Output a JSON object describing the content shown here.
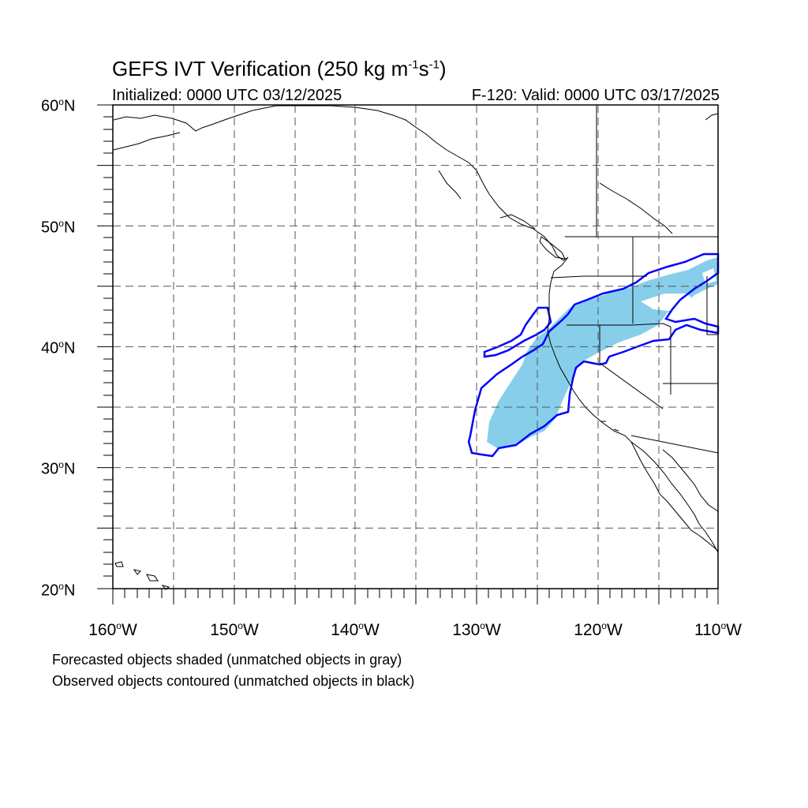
{
  "title": {
    "main": "GEFS IVT Verification (250 kg m",
    "sup1": "-1",
    "mid": "s",
    "sup2": "-1",
    "end": ")"
  },
  "subtitle": {
    "initialized": "Initialized: 0000 UTC 03/12/2025",
    "valid": "F-120: Valid: 0000 UTC 03/17/2025"
  },
  "axes": {
    "lat_labels": [
      {
        "value": "60",
        "suffix": "N"
      },
      {
        "value": "50",
        "suffix": "N"
      },
      {
        "value": "40",
        "suffix": "N"
      },
      {
        "value": "30",
        "suffix": "N"
      },
      {
        "value": "20",
        "suffix": "N"
      }
    ],
    "lon_labels": [
      {
        "value": "160",
        "suffix": "W"
      },
      {
        "value": "150",
        "suffix": "W"
      },
      {
        "value": "140",
        "suffix": "W"
      },
      {
        "value": "130",
        "suffix": "W"
      },
      {
        "value": "120",
        "suffix": "W"
      },
      {
        "value": "110",
        "suffix": "W"
      }
    ],
    "lat_range": [
      20,
      60
    ],
    "lon_range": [
      -160,
      -110
    ],
    "grid": "dashed every 5 degrees"
  },
  "legend_notes": {
    "forecast": "Forecasted objects shaded (unmatched objects in gray)",
    "observed": "Observed objects contoured (unmatched objects in black)"
  },
  "colors": {
    "forecast_fill": "#87ceeb",
    "observed_contour": "#0000ff",
    "coastline": "#000000",
    "grid": "#555555"
  }
}
